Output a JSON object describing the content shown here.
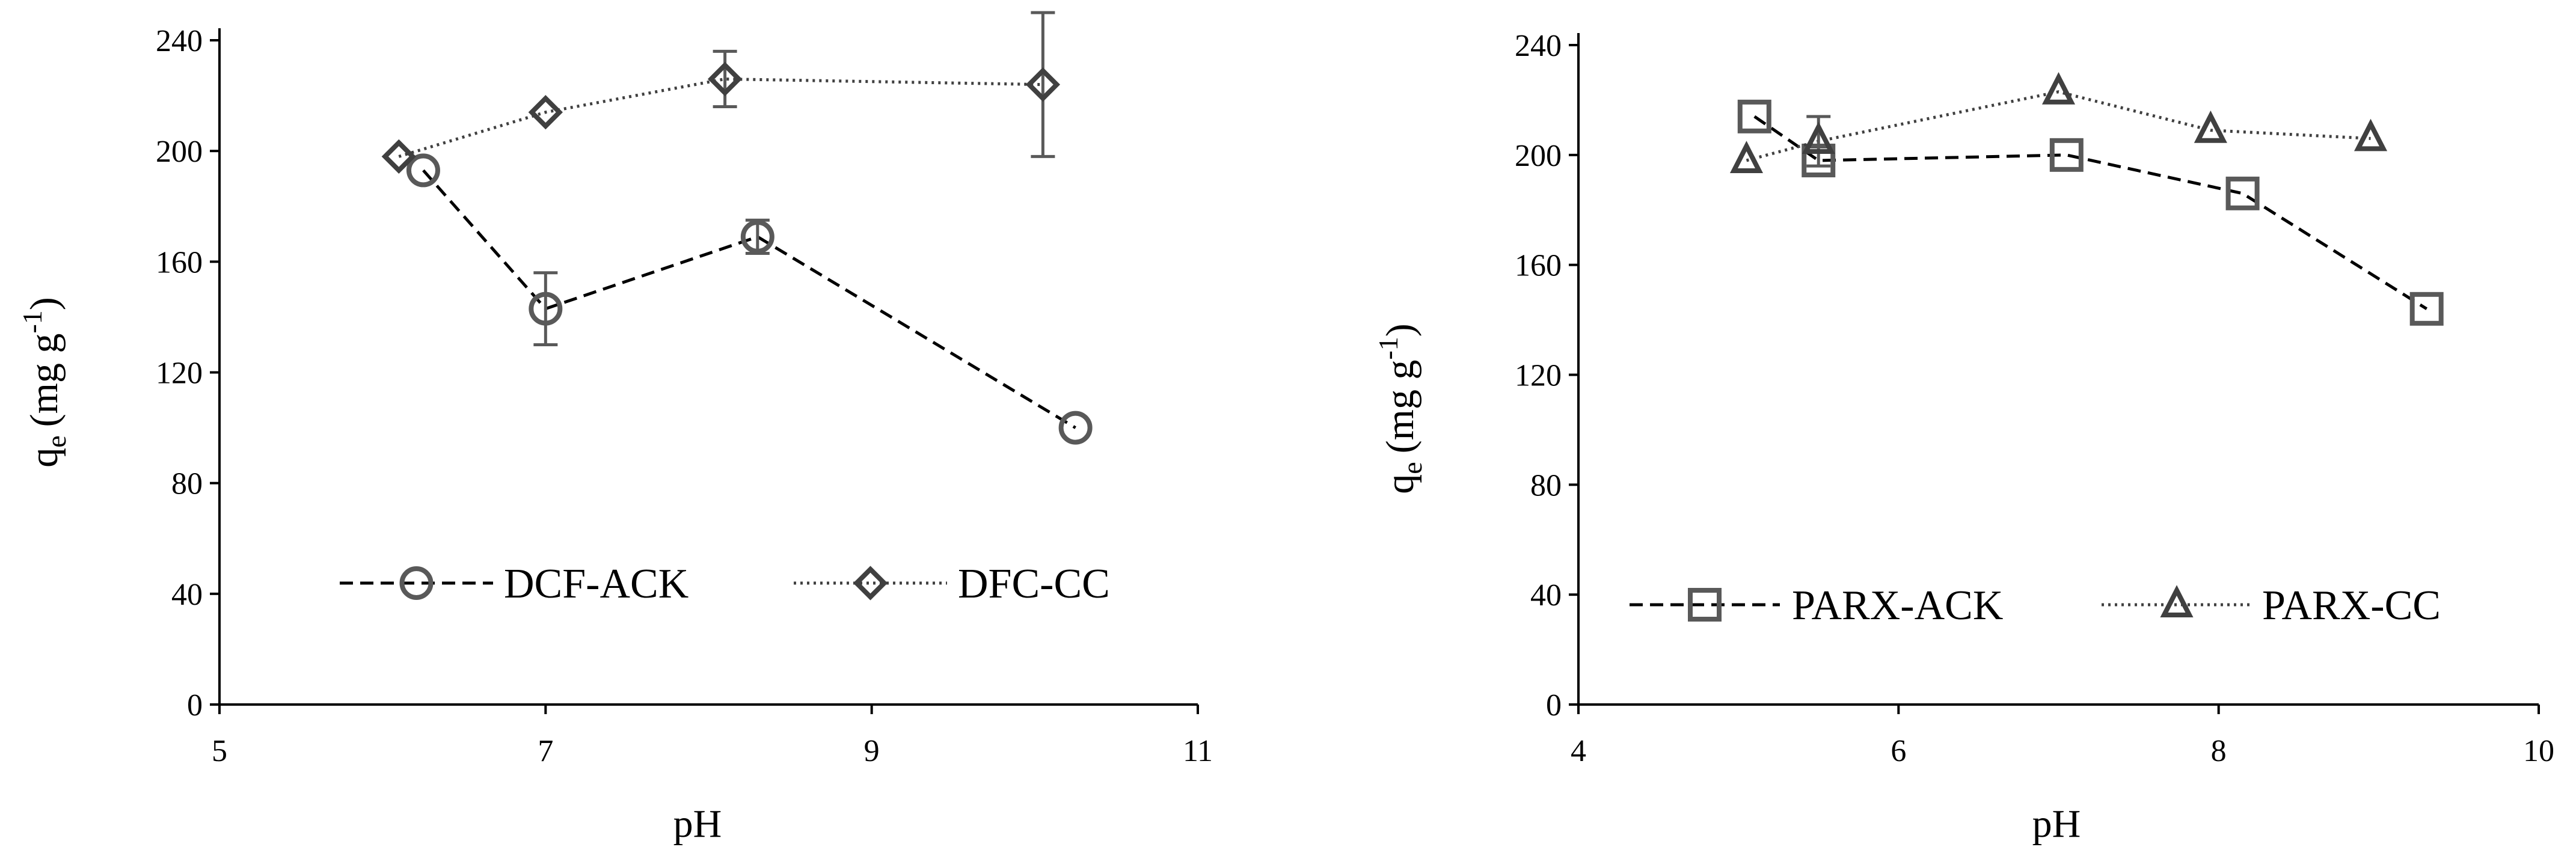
{
  "chart_data": [
    {
      "type": "line",
      "title": "",
      "xlabel": "pH",
      "ylabel": "q",
      "ylabel_sub": "e",
      "ylabel_units": "(mg g",
      "ylabel_sup": "-1",
      "ylabel_close": ")",
      "xlim": [
        5,
        11
      ],
      "ylim": [
        0,
        240
      ],
      "xticks": [
        5,
        7,
        9,
        11
      ],
      "yticks": [
        0,
        40,
        80,
        120,
        160,
        200,
        240
      ],
      "xtick_labels": [
        "5",
        "7",
        "9",
        "11"
      ],
      "ytick_labels": [
        "0",
        "40",
        "80",
        "120",
        "160",
        "200",
        "240"
      ],
      "grid": false,
      "legend_position": "bottom-center",
      "series": [
        {
          "name": "DCF-ACK",
          "marker": "circle",
          "line_style": "dashed",
          "color": "#000000",
          "marker_color": "#595959",
          "points": [
            {
              "x": 6.25,
              "y": 193,
              "err": 0
            },
            {
              "x": 7.0,
              "y": 143,
              "err": 13
            },
            {
              "x": 8.3,
              "y": 169,
              "err": 6
            },
            {
              "x": 10.25,
              "y": 100,
              "err": 0
            }
          ]
        },
        {
          "name": "DFC-CC",
          "marker": "diamond",
          "line_style": "dotted",
          "color": "#404040",
          "marker_color": "#404040",
          "points": [
            {
              "x": 6.1,
              "y": 198,
              "err": 0
            },
            {
              "x": 7.0,
              "y": 214,
              "err": 0
            },
            {
              "x": 8.1,
              "y": 226,
              "err": 10
            },
            {
              "x": 10.05,
              "y": 224,
              "err": 26
            }
          ]
        }
      ]
    },
    {
      "type": "line",
      "title": "",
      "xlabel": "pH",
      "ylabel": "q",
      "ylabel_sub": "e",
      "ylabel_units": "(mg g",
      "ylabel_sup": "-1",
      "ylabel_close": ")",
      "xlim": [
        4,
        10
      ],
      "ylim": [
        0,
        240
      ],
      "xticks": [
        4,
        6,
        8,
        10
      ],
      "yticks": [
        0,
        40,
        80,
        120,
        160,
        200,
        240
      ],
      "xtick_labels": [
        "4",
        "6",
        "8",
        "10"
      ],
      "ytick_labels": [
        "0",
        "40",
        "80",
        "120",
        "160",
        "200",
        "240"
      ],
      "grid": false,
      "legend_position": "bottom-center",
      "series": [
        {
          "name": "PARX-ACK",
          "marker": "square",
          "line_style": "dashed",
          "color": "#000000",
          "marker_color": "#595959",
          "points": [
            {
              "x": 5.1,
              "y": 214,
              "err": 0
            },
            {
              "x": 5.5,
              "y": 198,
              "err": 0
            },
            {
              "x": 7.05,
              "y": 200,
              "err": 0
            },
            {
              "x": 8.15,
              "y": 186,
              "err": 0
            },
            {
              "x": 9.3,
              "y": 144,
              "err": 0
            }
          ]
        },
        {
          "name": "PARX-CC",
          "marker": "triangle",
          "line_style": "dotted",
          "color": "#404040",
          "marker_color": "#404040",
          "points": [
            {
              "x": 5.05,
              "y": 198,
              "err": 0
            },
            {
              "x": 5.5,
              "y": 205,
              "err": 9
            },
            {
              "x": 7.0,
              "y": 223,
              "err": 0
            },
            {
              "x": 7.95,
              "y": 209,
              "err": 0
            },
            {
              "x": 8.95,
              "y": 206,
              "err": 0
            }
          ]
        }
      ]
    }
  ]
}
